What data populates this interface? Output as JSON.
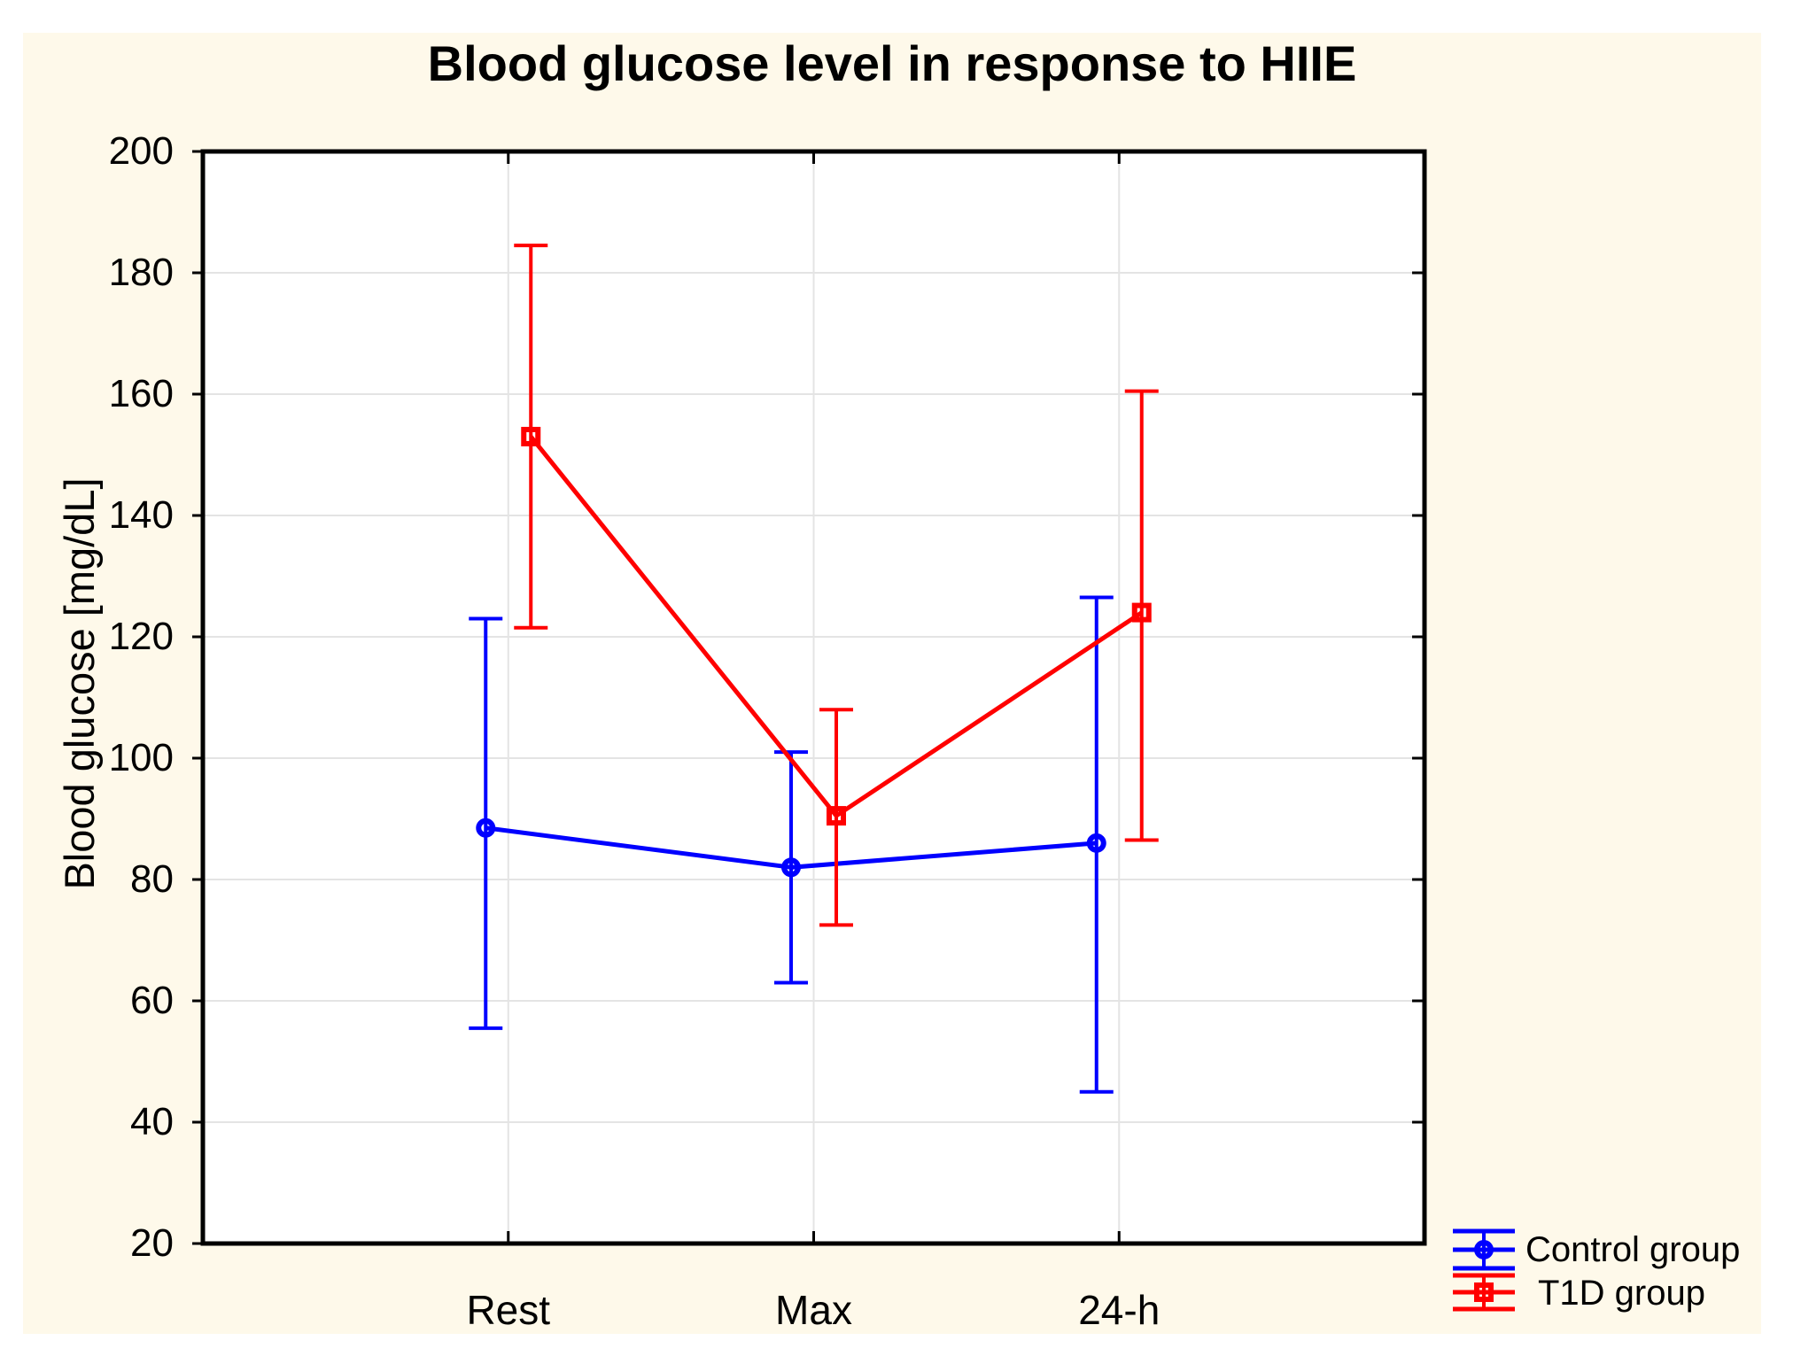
{
  "page": {
    "background": "#FFFFFF",
    "panel_background": "#FEF9EA"
  },
  "chart_data": {
    "type": "line",
    "title": "Blood glucose level in response to HIIE",
    "ylabel": "Blood glucose [mg/dL]",
    "xlabel": "",
    "categories": [
      "Rest",
      "Max",
      "24-h"
    ],
    "ylim": [
      20,
      200
    ],
    "yticks": [
      20,
      40,
      60,
      80,
      100,
      120,
      140,
      160,
      180,
      200
    ],
    "grid": true,
    "legend_position": "bottom-right-outside-plot",
    "series": [
      {
        "name": "Control group",
        "color": "#0000FF",
        "marker": "circle",
        "means": [
          88.5,
          82,
          86
        ],
        "err_low": [
          55.5,
          63,
          45
        ],
        "err_high": [
          123,
          101,
          126.5
        ]
      },
      {
        "name": "T1D group",
        "color": "#FF0000",
        "marker": "square",
        "means": [
          153,
          90.5,
          124
        ],
        "err_low": [
          121.5,
          72.5,
          86.5
        ],
        "err_high": [
          184.5,
          108,
          160.5
        ]
      }
    ]
  },
  "colors": {
    "gridline": "#E4E4E4",
    "axis": "#000000",
    "text": "#000000",
    "plot_background": "#FFFFFF"
  }
}
